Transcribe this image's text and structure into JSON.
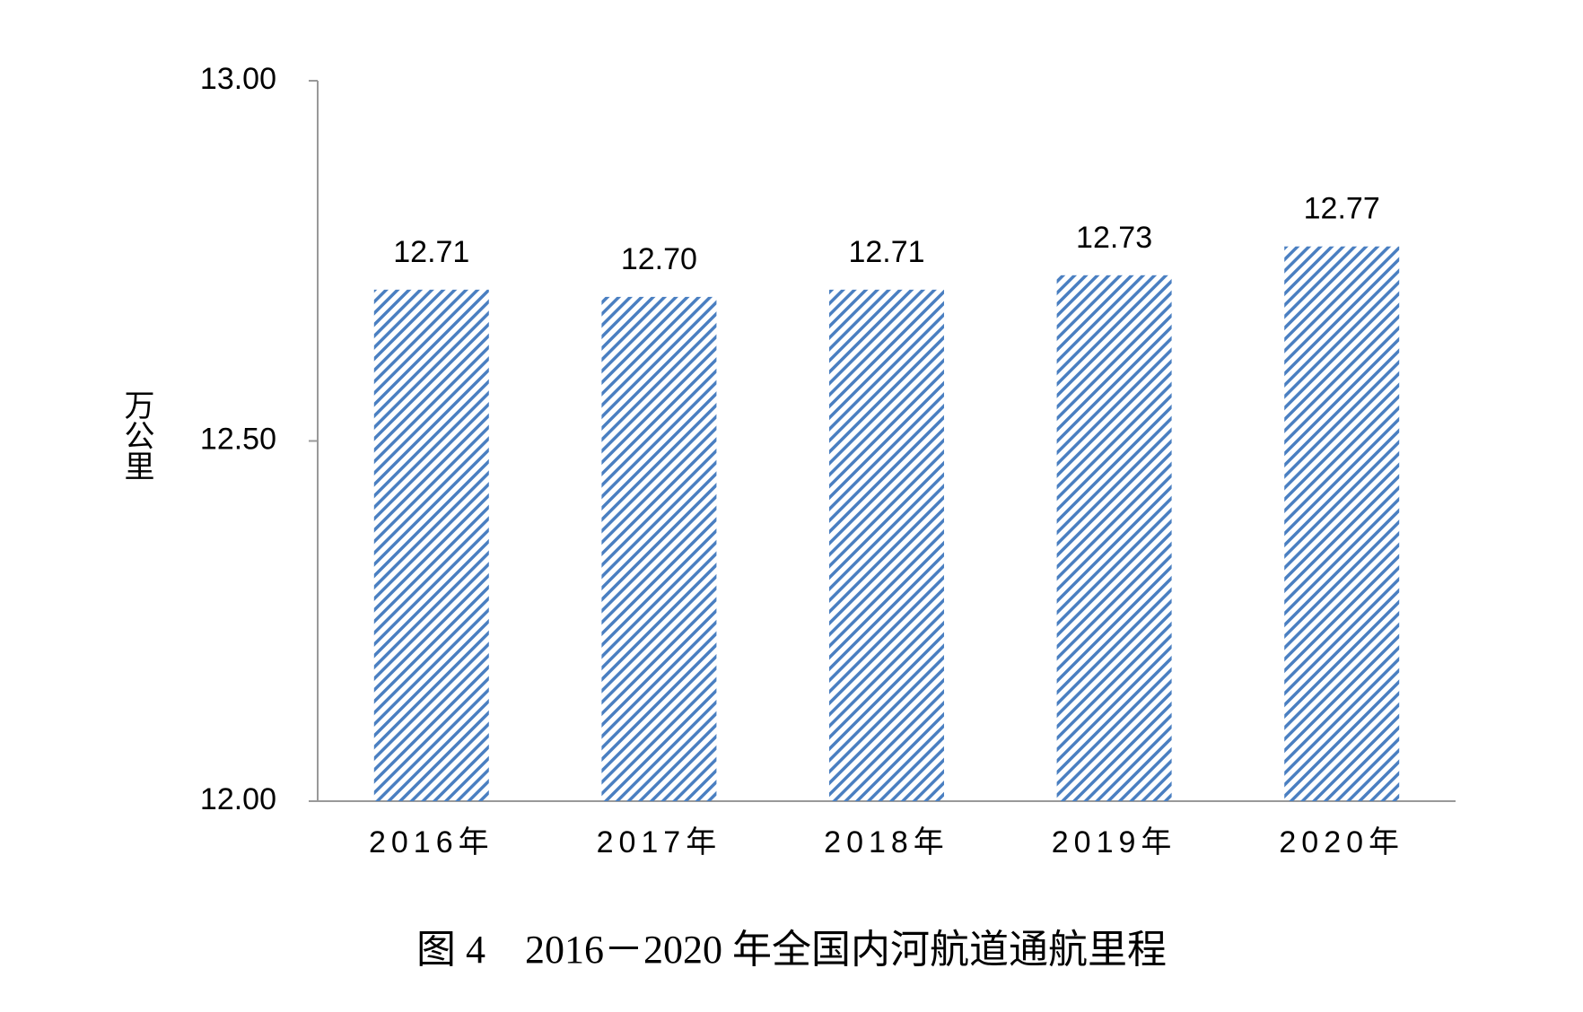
{
  "chart_data": {
    "type": "bar",
    "title": "图 4　2016－2020 年全国内河航道通航里程",
    "y_label": "万公里",
    "categories": [
      "2016年",
      "2017年",
      "2018年",
      "2019年",
      "2020年"
    ],
    "values": [
      12.71,
      12.7,
      12.71,
      12.73,
      12.77
    ],
    "value_labels": [
      "12.71",
      "12.70",
      "12.71",
      "12.73",
      "12.77"
    ],
    "color": "#4a7fc1",
    "ylim": [
      12,
      13
    ],
    "yticks": [
      {
        "value": 12,
        "label": "12.00"
      },
      {
        "value": 12.5,
        "label": "12.50"
      },
      {
        "value": 13,
        "label": "13.00"
      }
    ]
  }
}
